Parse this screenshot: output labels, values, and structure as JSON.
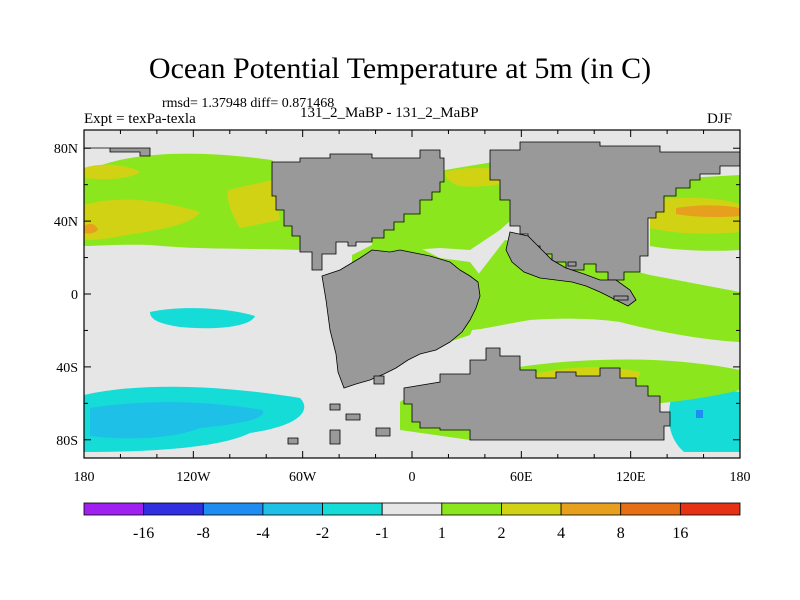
{
  "figure": {
    "title": "Ocean Potential Temperature at 5m (in C)",
    "stats": "rmsd= 1.37948 diff= 0.871468",
    "left_label": "Expt = texPa-texla",
    "center_label": "131_2_MaBP - 131_2_MaBP",
    "right_label": "DJF"
  },
  "chart_data": {
    "type": "heatmap",
    "title": "Ocean Potential Temperature at 5m (in C)",
    "subtitle": "Expt = texPa-texla; 131_2_MaBP - 131_2_MaBP; DJF",
    "x_ticks": [
      "180",
      "120W",
      "60W",
      "0",
      "60E",
      "120E",
      "180"
    ],
    "x_tick_values": [
      -180,
      -120,
      -60,
      0,
      60,
      120,
      180
    ],
    "y_ticks": [
      "80N",
      "40N",
      "0",
      "40S",
      "80S"
    ],
    "y_tick_values": [
      80,
      40,
      0,
      -40,
      -80
    ],
    "xlim": [
      -180,
      180
    ],
    "ylim": [
      -90,
      90
    ],
    "land_color": "#999999",
    "colorbar": {
      "levels": [
        "-16",
        "-8",
        "-4",
        "-2",
        "-1",
        "1",
        "2",
        "4",
        "8",
        "16"
      ],
      "colors": [
        "#a020f0",
        "#3030e0",
        "#1e8cf0",
        "#1ec0e8",
        "#16dcd8",
        "#e6e6e6",
        "#8ce61e",
        "#d2d214",
        "#e6a01e",
        "#e66e14",
        "#e63214"
      ]
    }
  }
}
